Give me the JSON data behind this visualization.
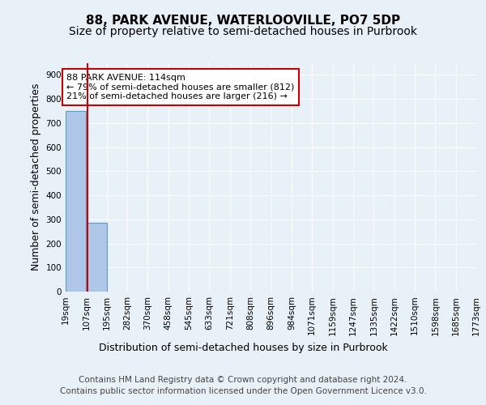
{
  "title": "88, PARK AVENUE, WATERLOOVILLE, PO7 5DP",
  "subtitle": "Size of property relative to semi-detached houses in Purbrook",
  "xlabel": "Distribution of semi-detached houses by size in Purbrook",
  "ylabel": "Number of semi-detached properties",
  "bin_edges": [
    19,
    107,
    195,
    282,
    370,
    458,
    545,
    633,
    721,
    808,
    896,
    984,
    1071,
    1159,
    1247,
    1335,
    1422,
    1510,
    1598,
    1685,
    1773
  ],
  "bar_heights": [
    750,
    285,
    0,
    0,
    0,
    0,
    0,
    0,
    0,
    0,
    0,
    0,
    0,
    0,
    0,
    0,
    0,
    0,
    0,
    0
  ],
  "bar_color": "#aec6e8",
  "bar_edgecolor": "#5b9bd5",
  "property_size": 114,
  "property_label": "88 PARK AVENUE: 114sqm",
  "pct_smaller": 79,
  "n_smaller": 812,
  "pct_larger": 21,
  "n_larger": 216,
  "vline_color": "#cc0000",
  "annotation_box_edgecolor": "#cc0000",
  "ylim": [
    0,
    950
  ],
  "yticks": [
    0,
    100,
    200,
    300,
    400,
    500,
    600,
    700,
    800,
    900
  ],
  "footer1": "Contains HM Land Registry data © Crown copyright and database right 2024.",
  "footer2": "Contains public sector information licensed under the Open Government Licence v3.0.",
  "bg_color": "#e8f0f8",
  "plot_bg_color": "#e8f0f8",
  "grid_color": "#ffffff",
  "title_fontsize": 11,
  "subtitle_fontsize": 10,
  "axis_label_fontsize": 9,
  "tick_fontsize": 7.5,
  "footer_fontsize": 7.5,
  "annotation_fontsize": 8
}
